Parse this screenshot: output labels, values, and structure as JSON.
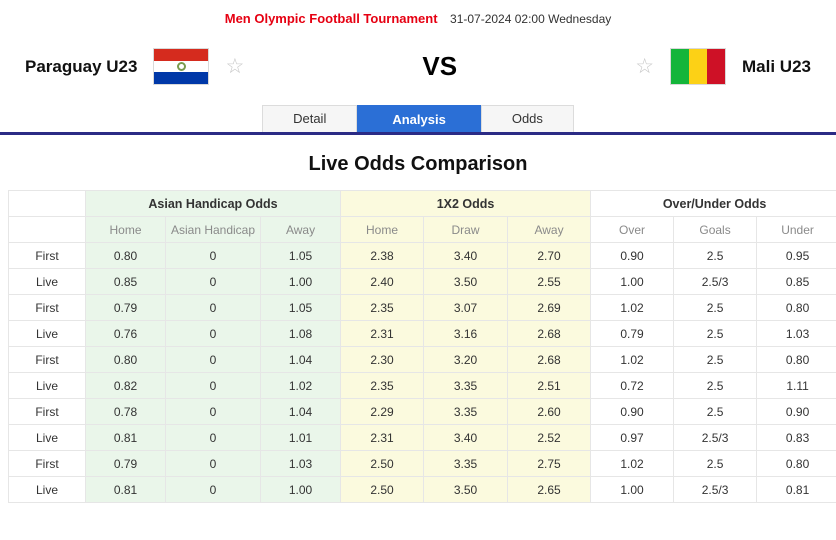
{
  "header": {
    "tournament": "Men Olympic Football Tournament",
    "datetime": "31-07-2024 02:00 Wednesday"
  },
  "match": {
    "home_team": "Paraguay U23",
    "away_team": "Mali U23",
    "vs_label": "VS",
    "home_flag": "paraguay-flag",
    "away_flag": "mali-flag"
  },
  "tabs": [
    {
      "label": "Detail",
      "active": false
    },
    {
      "label": "Analysis",
      "active": true
    },
    {
      "label": "Odds",
      "active": false
    }
  ],
  "section_title": "Live Odds Comparison",
  "colors": {
    "tab_active": "#2b6fd6",
    "underline": "#2b2b85",
    "tournament_red": "#e60012",
    "asian_handicap_bg": "#eaf6ea",
    "x12_bg": "#fbfade",
    "over_under_bg": "#ffffff"
  },
  "odds_table": {
    "groups": [
      "Asian Handicap Odds",
      "1X2 Odds",
      "Over/Under Odds"
    ],
    "sub_headers": [
      "Home",
      "Asian Handicap",
      "Away",
      "Home",
      "Draw",
      "Away",
      "Over",
      "Goals",
      "Under"
    ],
    "rows": [
      {
        "label": "First",
        "ah": [
          "0.80",
          "0",
          "1.05"
        ],
        "x12": [
          "2.38",
          "3.40",
          "2.70"
        ],
        "ou": [
          "0.90",
          "2.5",
          "0.95"
        ]
      },
      {
        "label": "Live",
        "ah": [
          "0.85",
          "0",
          "1.00"
        ],
        "x12": [
          "2.40",
          "3.50",
          "2.55"
        ],
        "ou": [
          "1.00",
          "2.5/3",
          "0.85"
        ]
      },
      {
        "label": "First",
        "ah": [
          "0.79",
          "0",
          "1.05"
        ],
        "x12": [
          "2.35",
          "3.07",
          "2.69"
        ],
        "ou": [
          "1.02",
          "2.5",
          "0.80"
        ]
      },
      {
        "label": "Live",
        "ah": [
          "0.76",
          "0",
          "1.08"
        ],
        "x12": [
          "2.31",
          "3.16",
          "2.68"
        ],
        "ou": [
          "0.79",
          "2.5",
          "1.03"
        ]
      },
      {
        "label": "First",
        "ah": [
          "0.80",
          "0",
          "1.04"
        ],
        "x12": [
          "2.30",
          "3.20",
          "2.68"
        ],
        "ou": [
          "1.02",
          "2.5",
          "0.80"
        ]
      },
      {
        "label": "Live",
        "ah": [
          "0.82",
          "0",
          "1.02"
        ],
        "x12": [
          "2.35",
          "3.35",
          "2.51"
        ],
        "ou": [
          "0.72",
          "2.5",
          "1.11"
        ]
      },
      {
        "label": "First",
        "ah": [
          "0.78",
          "0",
          "1.04"
        ],
        "x12": [
          "2.29",
          "3.35",
          "2.60"
        ],
        "ou": [
          "0.90",
          "2.5",
          "0.90"
        ]
      },
      {
        "label": "Live",
        "ah": [
          "0.81",
          "0",
          "1.01"
        ],
        "x12": [
          "2.31",
          "3.40",
          "2.52"
        ],
        "ou": [
          "0.97",
          "2.5/3",
          "0.83"
        ]
      },
      {
        "label": "First",
        "ah": [
          "0.79",
          "0",
          "1.03"
        ],
        "x12": [
          "2.50",
          "3.35",
          "2.75"
        ],
        "ou": [
          "1.02",
          "2.5",
          "0.80"
        ]
      },
      {
        "label": "Live",
        "ah": [
          "0.81",
          "0",
          "1.00"
        ],
        "x12": [
          "2.50",
          "3.50",
          "2.65"
        ],
        "ou": [
          "1.00",
          "2.5/3",
          "0.81"
        ]
      }
    ]
  }
}
